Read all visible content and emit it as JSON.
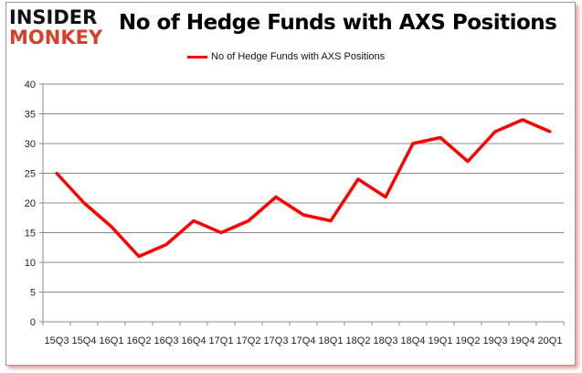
{
  "logo": {
    "line1": "INSIDER",
    "line2": "MONKEY"
  },
  "chart_data": {
    "type": "line",
    "title": "No of Hedge Funds with AXS Positions",
    "xlabel": "",
    "ylabel": "",
    "categories": [
      "15Q3",
      "15Q4",
      "16Q1",
      "16Q2",
      "16Q3",
      "16Q4",
      "17Q1",
      "17Q2",
      "17Q3",
      "17Q4",
      "18Q1",
      "18Q2",
      "18Q3",
      "18Q4",
      "19Q1",
      "19Q2",
      "19Q3",
      "19Q4",
      "20Q1"
    ],
    "series": [
      {
        "name": "No of Hedge Funds with AXS Positions",
        "values": [
          25,
          20,
          16,
          11,
          13,
          17,
          15,
          17,
          21,
          18,
          17,
          24,
          21,
          30,
          31,
          27,
          32,
          34,
          32
        ],
        "color": "#ff0000"
      }
    ],
    "ylim": [
      0,
      40
    ],
    "yticks": [
      0,
      5,
      10,
      15,
      20,
      25,
      30,
      35,
      40
    ],
    "grid": true,
    "legend": "top-center"
  }
}
